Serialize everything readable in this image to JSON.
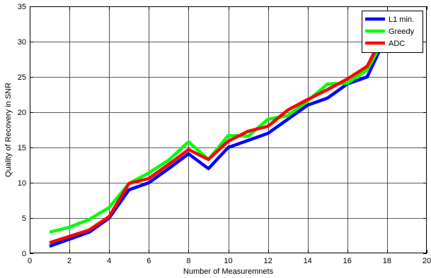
{
  "chart_data": {
    "type": "line",
    "title": "",
    "xlabel": "Number of Measuremnets",
    "ylabel": "Quality of Recovery in SNR",
    "xlim": [
      0,
      20
    ],
    "ylim": [
      0,
      35
    ],
    "grid": true,
    "legend_position": "top-right",
    "x_ticks": [
      0,
      2,
      4,
      6,
      8,
      10,
      12,
      14,
      16,
      18,
      20
    ],
    "y_ticks": [
      0,
      5,
      10,
      15,
      20,
      25,
      30,
      35
    ],
    "x_tick_labels": [
      "0",
      "2",
      "4",
      "6",
      "8",
      "10",
      "12",
      "14",
      "16",
      "18",
      "20"
    ],
    "y_tick_labels": [
      "0",
      "5",
      "10",
      "15",
      "20",
      "25",
      "30",
      "35"
    ],
    "x": [
      1,
      2,
      3,
      4,
      5,
      6,
      7,
      8,
      9,
      10,
      11,
      12,
      13,
      14,
      15,
      16,
      17,
      18
    ],
    "series": [
      {
        "name": "L1 min.",
        "color": "#0000ff",
        "values": [
          1.0,
          2.0,
          3.0,
          5.0,
          9.0,
          10.0,
          12.0,
          14.1,
          12.0,
          15.0,
          16.0,
          17.0,
          19.0,
          21.0,
          22.0,
          24.0,
          25.0,
          31.0
        ]
      },
      {
        "name": "Greedy",
        "color": "#00ff00",
        "values": [
          3.0,
          3.7,
          4.8,
          6.5,
          9.9,
          11.4,
          13.2,
          15.8,
          13.3,
          16.7,
          16.6,
          19.0,
          19.5,
          21.6,
          24.0,
          24.1,
          26.0,
          31.2
        ]
      },
      {
        "name": "ADC",
        "color": "#ff0000",
        "values": [
          1.5,
          2.4,
          3.3,
          5.2,
          9.9,
          10.6,
          12.6,
          14.7,
          13.3,
          15.9,
          17.3,
          18.0,
          20.3,
          21.8,
          23.2,
          24.7,
          26.5,
          32.0
        ]
      }
    ]
  }
}
